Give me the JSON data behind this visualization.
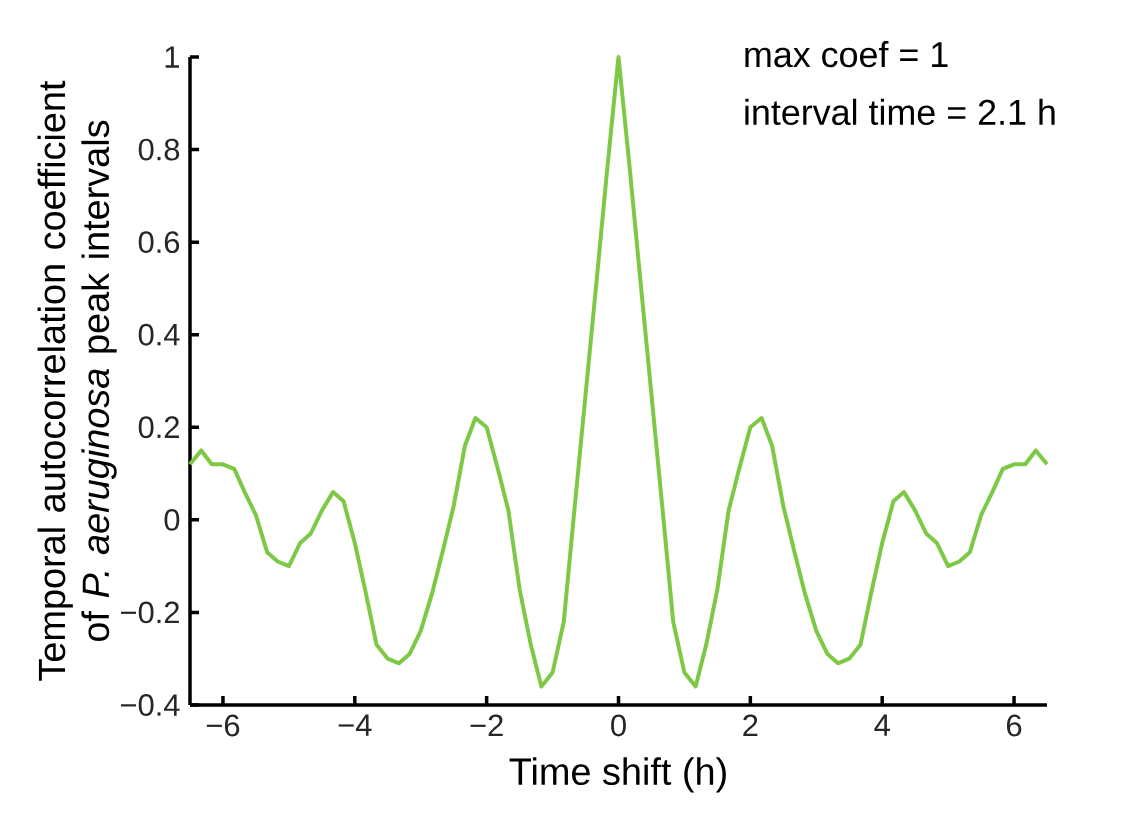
{
  "chart_data": {
    "type": "line",
    "xlabel": "Time shift (h)",
    "ylabel": "Temporal autocorrelation coefficient of *P. aeruginosa* peak intervals",
    "annotations": [
      "max coef = 1",
      "interval time = 2.1 h"
    ],
    "x": [
      -6.5,
      -6.33,
      -6.17,
      -6,
      -5.83,
      -5.67,
      -5.5,
      -5.33,
      -5.17,
      -5,
      -4.83,
      -4.67,
      -4.5,
      -4.33,
      -4.17,
      -4,
      -3.83,
      -3.67,
      -3.5,
      -3.33,
      -3.17,
      -3,
      -2.83,
      -2.67,
      -2.5,
      -2.33,
      -2.17,
      -2,
      -1.83,
      -1.67,
      -1.5,
      -1.33,
      -1.17,
      -1,
      -0.83,
      -0.67,
      -0.5,
      -0.33,
      -0.17,
      0,
      0.17,
      0.33,
      0.5,
      0.67,
      0.83,
      1,
      1.17,
      1.33,
      1.5,
      1.67,
      1.83,
      2,
      2.17,
      2.33,
      2.5,
      2.67,
      2.83,
      3,
      3.17,
      3.33,
      3.5,
      3.67,
      3.83,
      4,
      4.17,
      4.33,
      4.5,
      4.67,
      4.83,
      5,
      5.17,
      5.33,
      5.5,
      5.67,
      5.83,
      6,
      6.17,
      6.33,
      6.5
    ],
    "series": [
      {
        "color": "#7dc946",
        "values": [
          0.12,
          0.15,
          0.12,
          0.12,
          0.11,
          0.06,
          0.01,
          -0.07,
          -0.09,
          -0.1,
          -0.05,
          -0.03,
          0.02,
          0.06,
          0.04,
          -0.05,
          -0.16,
          -0.27,
          -0.3,
          -0.31,
          -0.29,
          -0.24,
          -0.16,
          -0.07,
          0.03,
          0.16,
          0.22,
          0.2,
          0.11,
          0.02,
          -0.15,
          -0.27,
          -0.36,
          -0.33,
          -0.22,
          0.02,
          0.27,
          0.52,
          0.76,
          1,
          0.76,
          0.52,
          0.27,
          0.02,
          -0.22,
          -0.33,
          -0.36,
          -0.27,
          -0.15,
          0.02,
          0.11,
          0.2,
          0.22,
          0.16,
          0.03,
          -0.07,
          -0.16,
          -0.24,
          -0.29,
          -0.31,
          -0.3,
          -0.27,
          -0.16,
          -0.05,
          0.04,
          0.06,
          0.02,
          -0.03,
          -0.05,
          -0.1,
          -0.09,
          -0.07,
          0.01,
          0.06,
          0.11,
          0.12,
          0.12,
          0.15,
          0.12
        ]
      }
    ],
    "xlim": [
      -6.5,
      6.5
    ],
    "ylim": [
      -0.4,
      1
    ],
    "xticks": [
      {
        "value": -6,
        "label": "−6"
      },
      {
        "value": -4,
        "label": "−4"
      },
      {
        "value": -2,
        "label": "−2"
      },
      0,
      2,
      4,
      6
    ],
    "yticks": [
      {
        "value": -0.4,
        "label": "−0.4"
      },
      {
        "value": -0.2,
        "label": "−0.2"
      },
      0,
      0.2,
      0.4,
      0.6,
      0.8,
      1
    ],
    "line_style": "solid",
    "marker": "none"
  }
}
